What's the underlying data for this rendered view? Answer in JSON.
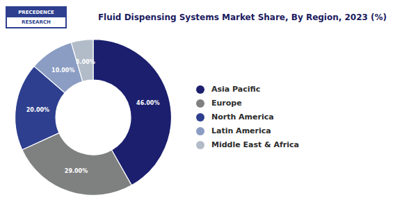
{
  "chart_data": {
    "type": "pie",
    "title": "Fluid Dispensing Systems Market Share, By Region, 2023 (%)",
    "categories": [
      "Asia Pacific",
      "Europe",
      "North America",
      "Latin America",
      "Middle East & Africa"
    ],
    "values": [
      46.0,
      29.0,
      20.0,
      10.0,
      5.0
    ],
    "value_labels": [
      "46.00%",
      "29.00%",
      "20.00%",
      "10.00%",
      "5.00%"
    ],
    "colors": [
      "#1b1f6e",
      "#7f8080",
      "#2e3f8f",
      "#8b9dc3",
      "#b2bcc8"
    ],
    "data_labels": true,
    "legend": "right",
    "annotations": [
      "PRECEDENCE",
      "RESEARCH"
    ]
  }
}
